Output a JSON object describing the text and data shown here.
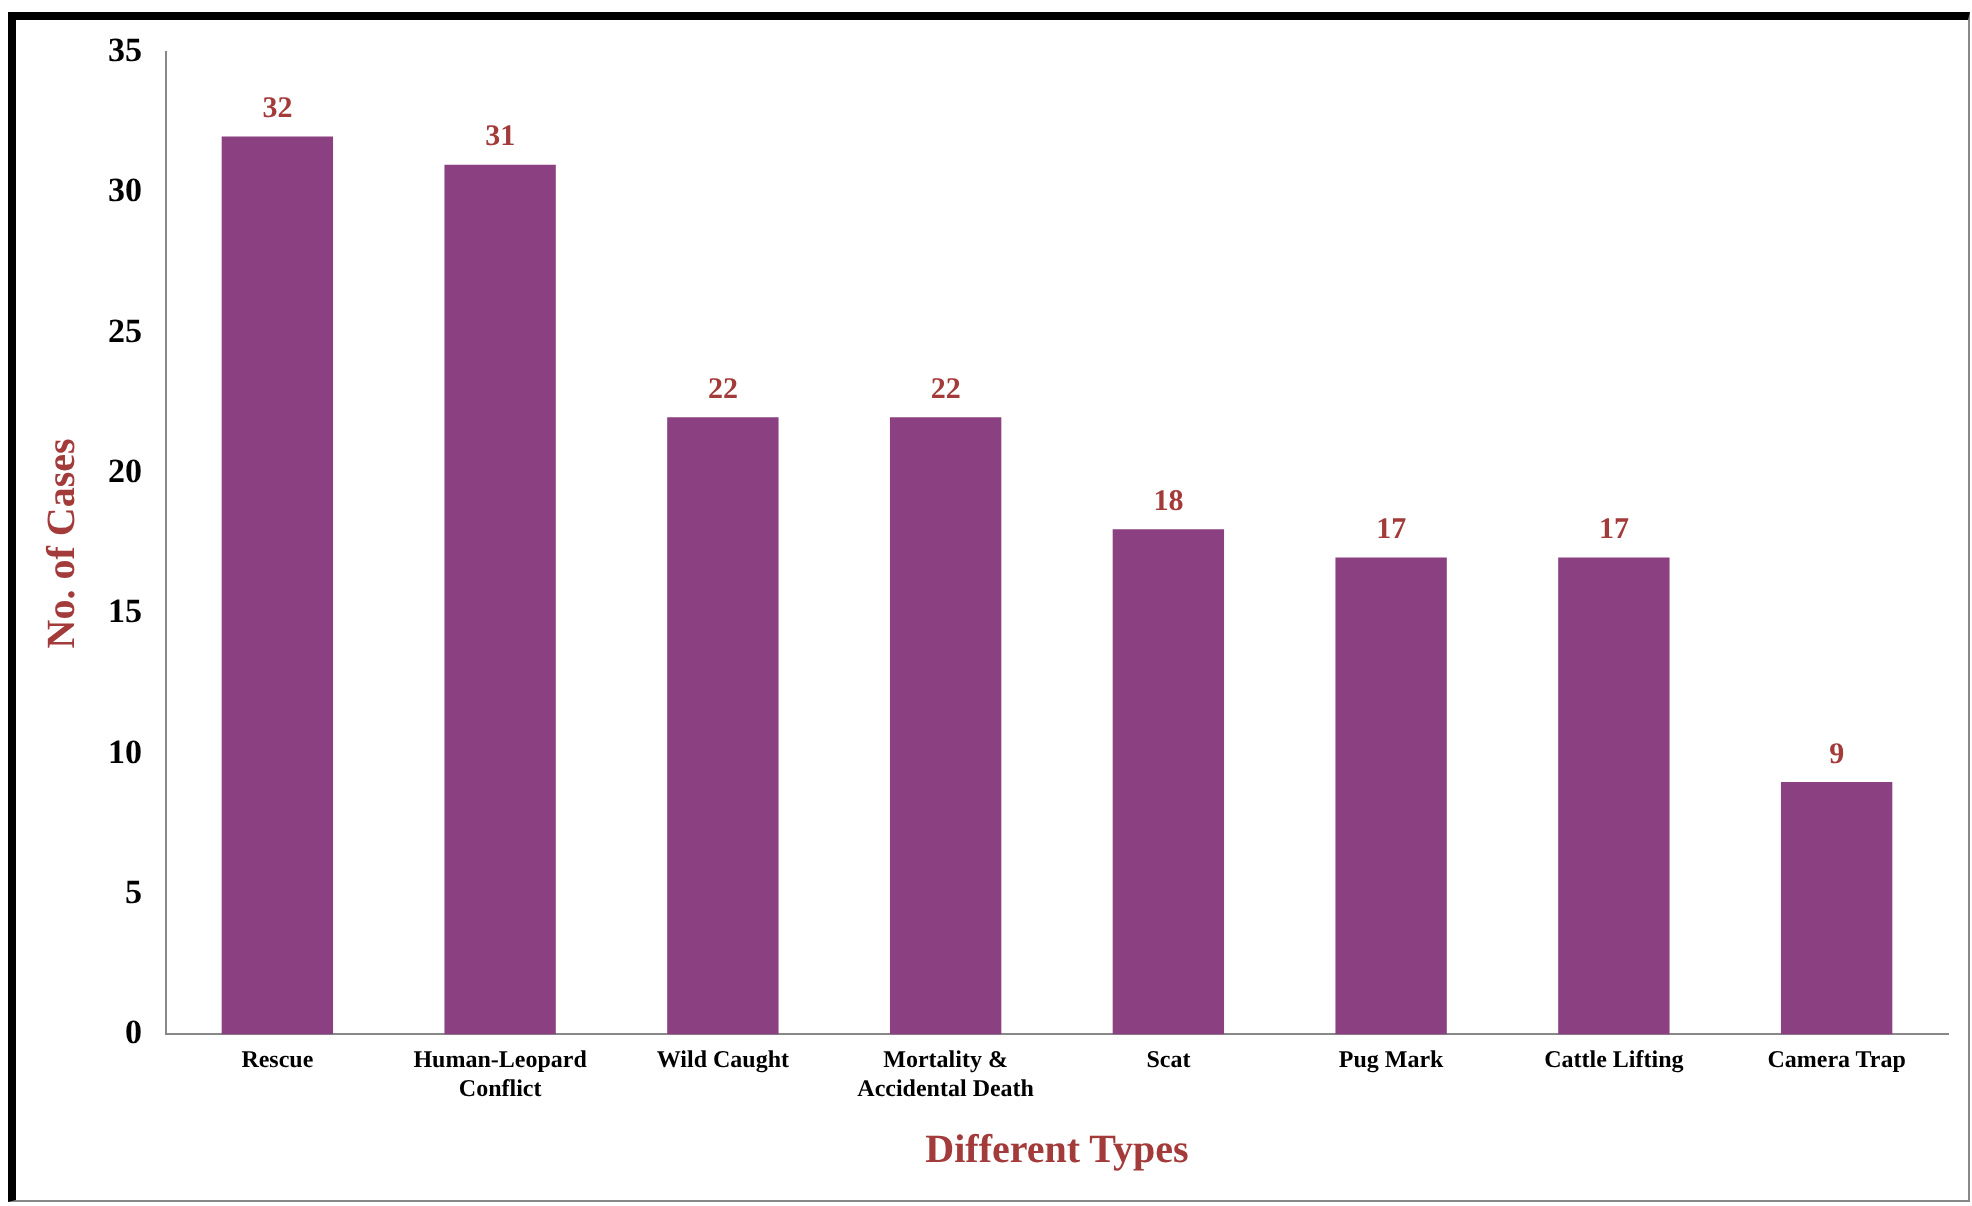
{
  "chart_data": {
    "type": "bar",
    "xlabel": "Different Types",
    "ylabel": "No. of Cases",
    "categories": [
      "Rescue",
      "Human-Leopard Conflict",
      "Wild Caught",
      "Mortality & Accidental Death",
      "Scat",
      "Pug Mark",
      "Cattle Lifting",
      "Camera Trap"
    ],
    "values": [
      32,
      31,
      22,
      22,
      18,
      17,
      17,
      9
    ],
    "color": "#8b4181",
    "ylim": [
      0,
      35
    ],
    "yticks": [
      0,
      5,
      10,
      15,
      20,
      25,
      30,
      35
    ],
    "grid": false,
    "legend": false,
    "data_labels": true
  }
}
